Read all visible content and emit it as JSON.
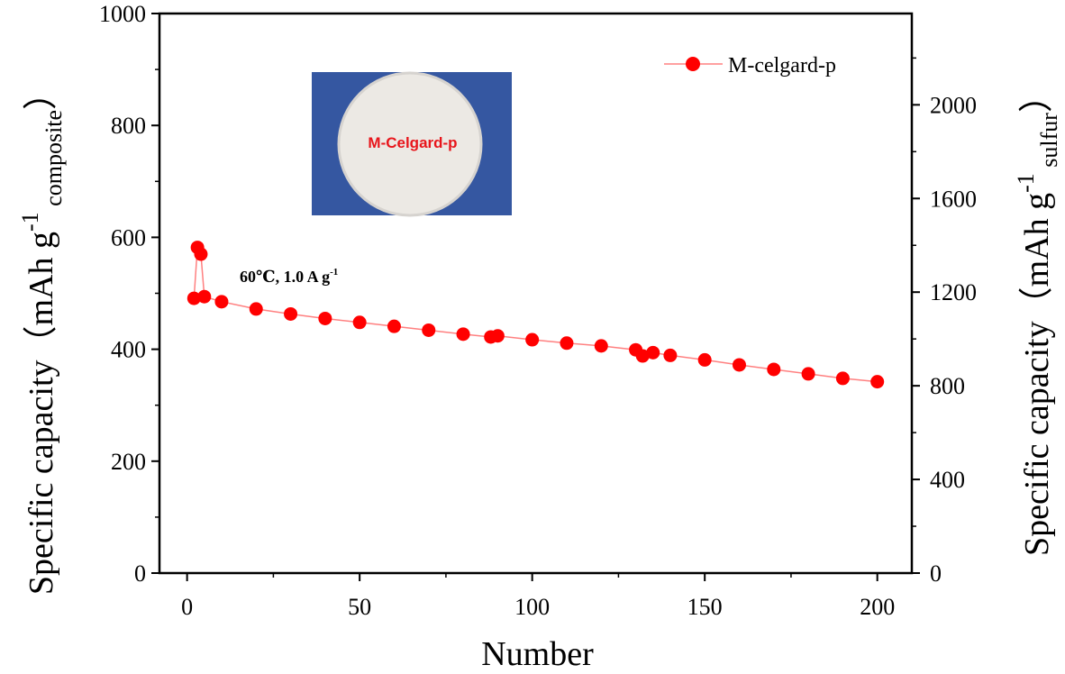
{
  "chart_data": {
    "type": "scatter",
    "xlabel": "Number",
    "ylabel": {
      "main": "Specific capacity（mAh g",
      "sup": "-1",
      "sub": "composite",
      "close": "）"
    },
    "y2label": {
      "main": "Specific capacity（mAh g",
      "sup": "-1",
      "sub": "sulfur",
      "close": "）"
    },
    "xlim": [
      -8,
      210
    ],
    "ylim": [
      0,
      1000
    ],
    "y2lim": [
      0,
      2390
    ],
    "xticks": [
      0,
      50,
      100,
      150,
      200
    ],
    "yticks": [
      0,
      200,
      400,
      600,
      800,
      1000
    ],
    "y2ticks": [
      0,
      400,
      800,
      1200,
      1600,
      2000
    ],
    "grid": false,
    "legend_position": "top-right",
    "series": [
      {
        "name": "M-celgard-p",
        "color": "#ff0000",
        "marker": "circle",
        "x": [
          2,
          3,
          4,
          5,
          10,
          20,
          30,
          40,
          50,
          60,
          70,
          80,
          88,
          90,
          100,
          110,
          120,
          130,
          132,
          135,
          140,
          150,
          160,
          170,
          180,
          190,
          200
        ],
        "y": [
          491,
          582,
          570,
          494,
          485,
          472,
          463,
          455,
          448,
          441,
          434,
          427,
          422,
          424,
          417,
          411,
          406,
          399,
          388,
          394,
          389,
          381,
          372,
          364,
          356,
          348,
          342
        ]
      }
    ],
    "annotation": {
      "text": "60℃, 1.0 A g",
      "sup": "-1"
    },
    "inset": {
      "label": "M-Celgard-p",
      "background_color": "#3a5ca8",
      "disc_color": "#ece9e4"
    }
  }
}
